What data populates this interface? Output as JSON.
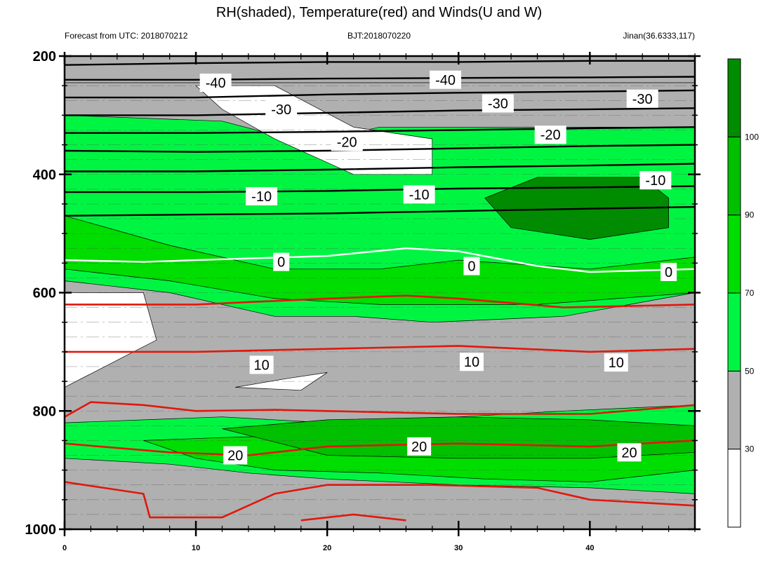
{
  "chart_data": {
    "type": "contour",
    "title": "RH(shaded), Temperature(red) and Winds(U and W)",
    "subtitle_left": "Forecast from UTC: 2018070212",
    "subtitle_center": "BJT:2018070220",
    "subtitle_right": "Jinan(36.6333,117)",
    "x_range": [
      0,
      48
    ],
    "x_ticks": [
      0,
      10,
      20,
      30,
      40
    ],
    "y_range": [
      200,
      1000
    ],
    "y_reversed": true,
    "y_ticks": [
      200,
      400,
      600,
      800,
      1000
    ],
    "colorbar": {
      "labels": [
        30,
        50,
        70,
        90,
        100
      ],
      "colors": [
        "#ffffff",
        "#b0b0b0",
        "#00f542",
        "#00dd00",
        "#00c000",
        "#008c00"
      ]
    },
    "rh_regions": [
      {
        "level": 1,
        "points": [
          [
            0,
            245
          ],
          [
            48,
            245
          ],
          [
            48,
            565
          ],
          [
            30,
            560
          ],
          [
            18,
            555
          ],
          [
            12,
            560
          ],
          [
            0,
            565
          ]
        ]
      },
      {
        "level": 2,
        "points": [
          [
            0,
            300
          ],
          [
            12,
            310
          ],
          [
            18,
            345
          ],
          [
            22,
            330
          ],
          [
            24,
            320
          ],
          [
            48,
            320
          ],
          [
            48,
            600
          ],
          [
            38,
            640
          ],
          [
            28,
            650
          ],
          [
            22,
            640
          ],
          [
            16,
            640
          ],
          [
            8,
            600
          ],
          [
            0,
            580
          ]
        ]
      },
      {
        "level": 2,
        "points": [
          [
            0,
            820
          ],
          [
            12,
            810
          ],
          [
            20,
            820
          ],
          [
            30,
            810
          ],
          [
            38,
            800
          ],
          [
            48,
            790
          ],
          [
            48,
            940
          ],
          [
            40,
            930
          ],
          [
            30,
            925
          ],
          [
            20,
            915
          ],
          [
            14,
            905
          ],
          [
            8,
            890
          ],
          [
            0,
            880
          ]
        ]
      },
      {
        "level": 3,
        "points": [
          [
            0,
            470
          ],
          [
            8,
            520
          ],
          [
            16,
            560
          ],
          [
            24,
            560
          ],
          [
            30,
            545
          ],
          [
            40,
            560
          ],
          [
            48,
            540
          ],
          [
            48,
            600
          ],
          [
            36,
            620
          ],
          [
            24,
            620
          ],
          [
            16,
            610
          ],
          [
            8,
            580
          ],
          [
            0,
            560
          ]
        ]
      },
      {
        "level": 3,
        "points": [
          [
            6,
            850
          ],
          [
            12,
            845
          ],
          [
            20,
            840
          ],
          [
            30,
            835
          ],
          [
            38,
            830
          ],
          [
            48,
            825
          ],
          [
            48,
            900
          ],
          [
            40,
            920
          ],
          [
            32,
            915
          ],
          [
            24,
            905
          ],
          [
            16,
            900
          ],
          [
            10,
            880
          ]
        ]
      },
      {
        "level": 4,
        "points": [
          [
            12,
            830
          ],
          [
            20,
            815
          ],
          [
            30,
            810
          ],
          [
            40,
            815
          ],
          [
            48,
            825
          ],
          [
            48,
            870
          ],
          [
            40,
            880
          ],
          [
            30,
            880
          ],
          [
            20,
            875
          ]
        ]
      },
      {
        "level": 5,
        "points": [
          [
            32,
            440
          ],
          [
            36,
            405
          ],
          [
            44,
            405
          ],
          [
            46,
            440
          ],
          [
            46,
            490
          ],
          [
            40,
            510
          ],
          [
            34,
            490
          ]
        ]
      },
      {
        "level": 0,
        "points": [
          [
            0,
            600
          ],
          [
            6,
            600
          ],
          [
            7,
            680
          ],
          [
            0,
            760
          ]
        ]
      },
      {
        "level": 0,
        "points": [
          [
            10,
            250
          ],
          [
            16,
            250
          ],
          [
            22,
            320
          ],
          [
            28,
            340
          ],
          [
            28,
            400
          ],
          [
            22,
            400
          ],
          [
            16,
            340
          ],
          [
            12,
            290
          ]
        ]
      },
      {
        "level": 0,
        "points": [
          [
            13,
            760
          ],
          [
            17,
            745
          ],
          [
            20,
            735
          ],
          [
            18,
            765
          ]
        ]
      }
    ],
    "temperature_lines": [
      {
        "label": "-40",
        "points": [
          [
            0,
            215
          ],
          [
            10,
            212
          ],
          [
            20,
            210
          ],
          [
            30,
            210
          ],
          [
            40,
            208
          ],
          [
            48,
            208
          ]
        ]
      },
      {
        "label": "-40",
        "points": [
          [
            0,
            240
          ],
          [
            10,
            240
          ],
          [
            20,
            238
          ],
          [
            30,
            237
          ],
          [
            40,
            236
          ],
          [
            48,
            235
          ]
        ]
      },
      {
        "label": "-30",
        "points": [
          [
            0,
            270
          ],
          [
            10,
            270
          ],
          [
            20,
            265
          ],
          [
            30,
            262
          ],
          [
            40,
            260
          ],
          [
            48,
            258
          ]
        ]
      },
      {
        "label": "-30",
        "points": [
          [
            0,
            300
          ],
          [
            10,
            300
          ],
          [
            20,
            296
          ],
          [
            30,
            292
          ],
          [
            40,
            290
          ],
          [
            48,
            288
          ]
        ]
      },
      {
        "label": "-20",
        "points": [
          [
            0,
            330
          ],
          [
            10,
            330
          ],
          [
            20,
            328
          ],
          [
            30,
            325
          ],
          [
            40,
            322
          ],
          [
            48,
            320
          ]
        ]
      },
      {
        "label": "-20",
        "points": [
          [
            0,
            360
          ],
          [
            10,
            362
          ],
          [
            20,
            360
          ],
          [
            30,
            356
          ],
          [
            40,
            352
          ],
          [
            48,
            350
          ]
        ]
      },
      {
        "label": "-10",
        "points": [
          [
            0,
            395
          ],
          [
            10,
            395
          ],
          [
            20,
            392
          ],
          [
            30,
            388
          ],
          [
            40,
            385
          ],
          [
            48,
            382
          ]
        ]
      },
      {
        "label": "-10",
        "points": [
          [
            0,
            430
          ],
          [
            10,
            430
          ],
          [
            20,
            428
          ],
          [
            30,
            424
          ],
          [
            40,
            422
          ],
          [
            48,
            420
          ]
        ]
      },
      {
        "label": "-10",
        "points": [
          [
            0,
            470
          ],
          [
            10,
            468
          ],
          [
            20,
            466
          ],
          [
            30,
            462
          ],
          [
            40,
            458
          ],
          [
            48,
            455
          ]
        ]
      },
      {
        "label": "0",
        "points": [
          [
            0,
            545
          ],
          [
            6,
            548
          ],
          [
            10,
            545
          ],
          [
            20,
            538
          ],
          [
            26,
            525
          ],
          [
            30,
            530
          ],
          [
            36,
            555
          ],
          [
            40,
            565
          ],
          [
            48,
            560
          ]
        ]
      },
      {
        "label": "",
        "points": [
          [
            0,
            620
          ],
          [
            10,
            620
          ],
          [
            20,
            610
          ],
          [
            26,
            605
          ],
          [
            30,
            610
          ],
          [
            38,
            625
          ],
          [
            48,
            620
          ]
        ]
      },
      {
        "label": "10",
        "points": [
          [
            0,
            700
          ],
          [
            10,
            700
          ],
          [
            20,
            695
          ],
          [
            30,
            690
          ],
          [
            40,
            700
          ],
          [
            48,
            695
          ]
        ]
      },
      {
        "label": "",
        "points": [
          [
            0,
            810
          ],
          [
            2,
            785
          ],
          [
            6,
            790
          ],
          [
            10,
            800
          ],
          [
            16,
            798
          ],
          [
            20,
            800
          ],
          [
            30,
            805
          ],
          [
            40,
            805
          ],
          [
            48,
            790
          ]
        ]
      },
      {
        "label": "20",
        "points": [
          [
            0,
            855
          ],
          [
            8,
            870
          ],
          [
            14,
            875
          ],
          [
            20,
            860
          ],
          [
            30,
            855
          ],
          [
            40,
            860
          ],
          [
            48,
            850
          ]
        ]
      },
      {
        "label": "",
        "points": [
          [
            0,
            920
          ],
          [
            6,
            940
          ],
          [
            6.5,
            980
          ],
          [
            12,
            980
          ],
          [
            16,
            940
          ],
          [
            20,
            925
          ],
          [
            28,
            925
          ],
          [
            36,
            930
          ],
          [
            40,
            950
          ],
          [
            48,
            960
          ]
        ]
      },
      {
        "label": "",
        "points": [
          [
            18,
            985
          ],
          [
            22,
            975
          ],
          [
            26,
            985
          ]
        ]
      }
    ],
    "contour_labels": [
      {
        "text": "-40",
        "x": 11.5,
        "y": 245
      },
      {
        "text": "-40",
        "x": 29,
        "y": 240
      },
      {
        "text": "-30",
        "x": 16.5,
        "y": 290
      },
      {
        "text": "-30",
        "x": 33,
        "y": 280
      },
      {
        "text": "-30",
        "x": 44,
        "y": 272
      },
      {
        "text": "-20",
        "x": 21.5,
        "y": 345
      },
      {
        "text": "-20",
        "x": 37,
        "y": 333
      },
      {
        "text": "-10",
        "x": 15,
        "y": 437
      },
      {
        "text": "-10",
        "x": 27,
        "y": 434
      },
      {
        "text": "-10",
        "x": 45,
        "y": 410
      },
      {
        "text": "0",
        "x": 16.5,
        "y": 548
      },
      {
        "text": "0",
        "x": 31,
        "y": 555
      },
      {
        "text": "0",
        "x": 46,
        "y": 565
      },
      {
        "text": "10",
        "x": 15,
        "y": 722
      },
      {
        "text": "10",
        "x": 31,
        "y": 717
      },
      {
        "text": "10",
        "x": 42,
        "y": 718
      },
      {
        "text": "20",
        "x": 13,
        "y": 875
      },
      {
        "text": "20",
        "x": 27,
        "y": 860
      },
      {
        "text": "20",
        "x": 43,
        "y": 870
      }
    ]
  }
}
